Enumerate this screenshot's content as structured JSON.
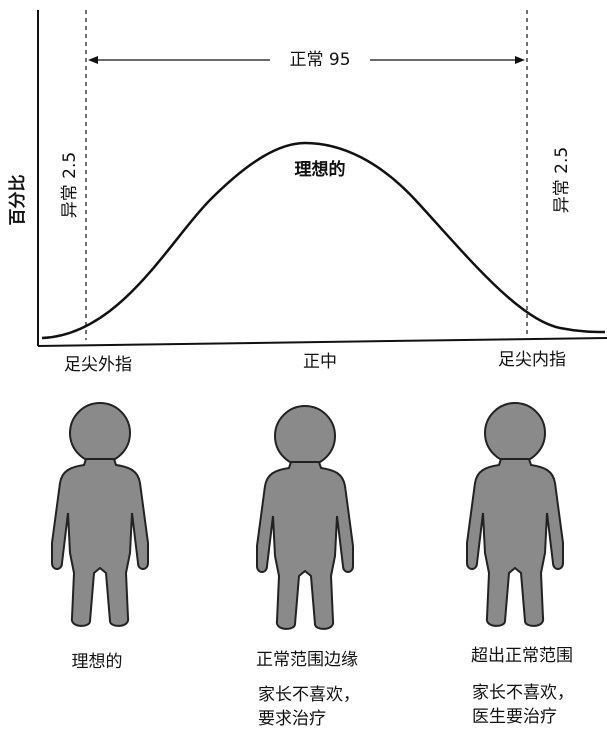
{
  "y_axis_label": "百分比",
  "normal_range": "正常 95",
  "abnormal_left": "异常 2.5",
  "abnormal_right": "异常 2.5",
  "curve_label": "理想的",
  "x_labels": [
    "足尖外指",
    "正中",
    "足尖内指"
  ],
  "figures": [
    {
      "caption": "理想的",
      "note": []
    },
    {
      "caption": "正常范围边缘",
      "note": [
        "家长不喜欢，",
        "要求治疗"
      ]
    },
    {
      "caption": "超出正常范围",
      "note": [
        "家长不喜欢，",
        "医生要治疗"
      ]
    }
  ]
}
